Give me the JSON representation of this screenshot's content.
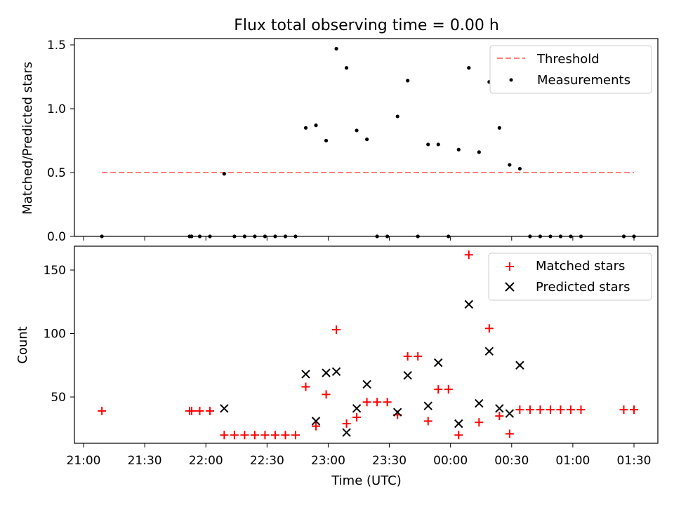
{
  "chart_data": [
    {
      "type": "scatter",
      "title": "Flux total observing time = 0.00 h",
      "xlabel": "",
      "ylabel": "Matched/Predicted stars",
      "x_unit": "time (UTC)",
      "xlim": [
        "21:00",
        "01:30"
      ],
      "ylim": [
        0,
        1.55
      ],
      "yticks": [
        0.0,
        0.5,
        1.0,
        1.5
      ],
      "ytick_labels": [
        "0.0",
        "0.5",
        "1.0",
        "1.5"
      ],
      "legend_position": "top-right",
      "series": [
        {
          "name": "Threshold",
          "kind": "line",
          "style": "dashed",
          "color": "#ff7f7f",
          "x": [
            "21:09",
            "01:30"
          ],
          "y": [
            0.5,
            0.5
          ]
        },
        {
          "name": "Measurements",
          "kind": "points",
          "color": "#000000",
          "x": [
            "21:09",
            "21:52",
            "21:53",
            "21:57",
            "22:02",
            "22:09",
            "22:14",
            "22:19",
            "22:24",
            "22:29",
            "22:34",
            "22:39",
            "22:44",
            "22:49",
            "22:54",
            "22:59",
            "23:04",
            "23:09",
            "23:14",
            "23:19",
            "23:24",
            "23:29",
            "23:34",
            "23:39",
            "23:44",
            "23:49",
            "23:54",
            "23:59",
            "00:04",
            "00:09",
            "00:14",
            "00:19",
            "00:24",
            "00:29",
            "00:34",
            "00:39",
            "00:44",
            "00:49",
            "00:54",
            "00:59",
            "01:04",
            "01:25",
            "01:30"
          ],
          "y": [
            0.0,
            0.0,
            0.0,
            0.0,
            0.0,
            0.49,
            0.0,
            0.0,
            0.0,
            0.0,
            0.0,
            0.0,
            0.0,
            0.85,
            0.87,
            0.75,
            1.47,
            1.32,
            0.83,
            0.76,
            0.0,
            0.0,
            0.94,
            1.22,
            0.0,
            0.72,
            0.72,
            0.0,
            0.68,
            1.32,
            0.66,
            1.21,
            0.85,
            0.56,
            0.53,
            0.0,
            0.0,
            0.0,
            0.0,
            0.0,
            0.0,
            0.0,
            0.0
          ]
        }
      ]
    },
    {
      "type": "scatter",
      "title": "",
      "xlabel": "Time (UTC)",
      "ylabel": "Count",
      "x_unit": "time (UTC)",
      "xlim": [
        "21:00",
        "01:30"
      ],
      "ylim": [
        12,
        170
      ],
      "xticks": [
        "21:00",
        "21:30",
        "22:00",
        "22:30",
        "23:00",
        "23:30",
        "00:00",
        "00:30",
        "01:00",
        "01:30"
      ],
      "yticks": [
        50,
        100,
        150
      ],
      "ytick_labels": [
        "50",
        "100",
        "150"
      ],
      "legend_position": "top-right",
      "series": [
        {
          "name": "Matched stars",
          "marker": "+",
          "color": "#ff0000",
          "x": [
            "21:09",
            "21:52",
            "21:53",
            "21:57",
            "22:02",
            "22:09",
            "22:14",
            "22:19",
            "22:24",
            "22:29",
            "22:34",
            "22:39",
            "22:44",
            "22:49",
            "22:54",
            "22:59",
            "23:04",
            "23:09",
            "23:14",
            "23:19",
            "23:24",
            "23:29",
            "23:34",
            "23:39",
            "23:44",
            "23:49",
            "23:54",
            "23:59",
            "00:04",
            "00:09",
            "00:14",
            "00:19",
            "00:24",
            "00:29",
            "00:34",
            "00:39",
            "00:44",
            "00:49",
            "00:54",
            "00:59",
            "01:04",
            "01:25",
            "01:30"
          ],
          "y": [
            39,
            39,
            39,
            39,
            39,
            20,
            20,
            20,
            20,
            20,
            20,
            20,
            20,
            58,
            27,
            52,
            103,
            29,
            34,
            46,
            46,
            46,
            36,
            82,
            82,
            31,
            56,
            56,
            20,
            162,
            30,
            104,
            35,
            21,
            40,
            40,
            40,
            40,
            40,
            40,
            40,
            40,
            40
          ]
        },
        {
          "name": "Predicted stars",
          "marker": "x",
          "color": "#000000",
          "x": [
            "22:09",
            "22:49",
            "22:54",
            "22:59",
            "23:04",
            "23:09",
            "23:14",
            "23:19",
            "23:34",
            "23:39",
            "23:49",
            "23:54",
            "00:04",
            "00:09",
            "00:14",
            "00:19",
            "00:24",
            "00:29",
            "00:34"
          ],
          "y": [
            41,
            68,
            31,
            69,
            70,
            22,
            41,
            60,
            38,
            67,
            43,
            77,
            29,
            123,
            45,
            86,
            41,
            37,
            75
          ]
        }
      ]
    }
  ]
}
